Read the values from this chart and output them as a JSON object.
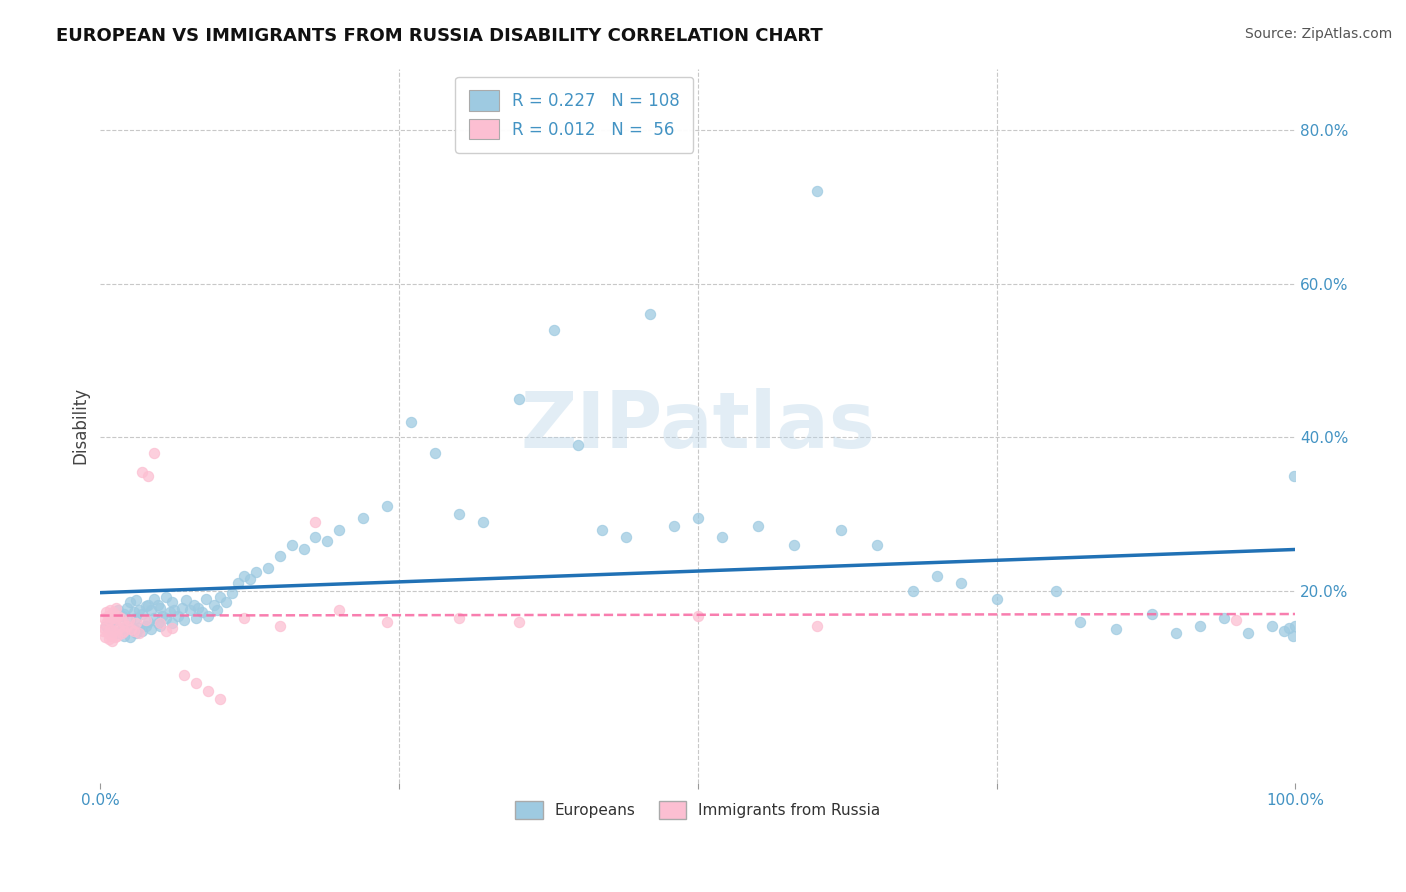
{
  "title": "EUROPEAN VS IMMIGRANTS FROM RUSSIA DISABILITY CORRELATION CHART",
  "source": "Source: ZipAtlas.com",
  "ylabel": "Disability",
  "xlim": [
    0.0,
    1.0
  ],
  "ylim": [
    -0.05,
    0.88
  ],
  "blue_R": 0.227,
  "blue_N": 108,
  "pink_R": 0.012,
  "pink_N": 56,
  "blue_color": "#9ecae1",
  "pink_color": "#fcbfd2",
  "blue_line_color": "#2171b5",
  "pink_line_color": "#f768a1",
  "axis_color": "#4393c3",
  "watermark": "ZIPatlas",
  "background_color": "#ffffff",
  "grid_color": "#c8c8c8",
  "blue_scatter_x": [
    0.005,
    0.008,
    0.01,
    0.012,
    0.015,
    0.015,
    0.018,
    0.018,
    0.02,
    0.02,
    0.022,
    0.022,
    0.025,
    0.025,
    0.025,
    0.028,
    0.028,
    0.03,
    0.03,
    0.03,
    0.032,
    0.032,
    0.035,
    0.035,
    0.038,
    0.038,
    0.04,
    0.04,
    0.042,
    0.042,
    0.045,
    0.045,
    0.048,
    0.048,
    0.05,
    0.05,
    0.052,
    0.055,
    0.055,
    0.058,
    0.06,
    0.06,
    0.062,
    0.065,
    0.068,
    0.07,
    0.072,
    0.075,
    0.078,
    0.08,
    0.082,
    0.085,
    0.088,
    0.09,
    0.095,
    0.098,
    0.1,
    0.105,
    0.11,
    0.115,
    0.12,
    0.125,
    0.13,
    0.14,
    0.15,
    0.16,
    0.17,
    0.18,
    0.19,
    0.2,
    0.22,
    0.24,
    0.26,
    0.28,
    0.3,
    0.32,
    0.35,
    0.38,
    0.4,
    0.42,
    0.44,
    0.46,
    0.48,
    0.5,
    0.52,
    0.55,
    0.58,
    0.6,
    0.62,
    0.65,
    0.68,
    0.7,
    0.72,
    0.75,
    0.8,
    0.82,
    0.85,
    0.88,
    0.9,
    0.92,
    0.94,
    0.96,
    0.98,
    0.99,
    0.995,
    0.998,
    0.999,
    1.0
  ],
  "blue_scatter_y": [
    0.155,
    0.16,
    0.148,
    0.162,
    0.145,
    0.175,
    0.15,
    0.168,
    0.142,
    0.17,
    0.155,
    0.178,
    0.14,
    0.162,
    0.185,
    0.15,
    0.172,
    0.145,
    0.165,
    0.188,
    0.152,
    0.175,
    0.148,
    0.17,
    0.155,
    0.18,
    0.16,
    0.182,
    0.15,
    0.175,
    0.165,
    0.19,
    0.158,
    0.182,
    0.155,
    0.178,
    0.168,
    0.165,
    0.192,
    0.172,
    0.158,
    0.185,
    0.175,
    0.168,
    0.178,
    0.162,
    0.188,
    0.175,
    0.182,
    0.165,
    0.178,
    0.172,
    0.19,
    0.168,
    0.182,
    0.175,
    0.192,
    0.185,
    0.198,
    0.21,
    0.22,
    0.215,
    0.225,
    0.23,
    0.245,
    0.26,
    0.255,
    0.27,
    0.265,
    0.28,
    0.295,
    0.31,
    0.42,
    0.38,
    0.3,
    0.29,
    0.45,
    0.54,
    0.39,
    0.28,
    0.27,
    0.56,
    0.285,
    0.295,
    0.27,
    0.285,
    0.26,
    0.72,
    0.28,
    0.26,
    0.2,
    0.22,
    0.21,
    0.19,
    0.2,
    0.16,
    0.15,
    0.17,
    0.145,
    0.155,
    0.165,
    0.145,
    0.155,
    0.148,
    0.152,
    0.142,
    0.35,
    0.155
  ],
  "pink_scatter_x": [
    0.002,
    0.003,
    0.003,
    0.004,
    0.005,
    0.005,
    0.006,
    0.006,
    0.007,
    0.007,
    0.008,
    0.008,
    0.009,
    0.009,
    0.01,
    0.01,
    0.011,
    0.011,
    0.012,
    0.012,
    0.013,
    0.013,
    0.014,
    0.015,
    0.016,
    0.017,
    0.018,
    0.019,
    0.02,
    0.022,
    0.024,
    0.026,
    0.028,
    0.03,
    0.032,
    0.035,
    0.038,
    0.04,
    0.045,
    0.05,
    0.055,
    0.06,
    0.07,
    0.08,
    0.09,
    0.1,
    0.12,
    0.15,
    0.18,
    0.2,
    0.24,
    0.3,
    0.35,
    0.5,
    0.6,
    0.95
  ],
  "pink_scatter_y": [
    0.148,
    0.152,
    0.165,
    0.14,
    0.158,
    0.172,
    0.145,
    0.168,
    0.138,
    0.162,
    0.15,
    0.175,
    0.142,
    0.168,
    0.135,
    0.165,
    0.148,
    0.172,
    0.14,
    0.165,
    0.155,
    0.178,
    0.142,
    0.168,
    0.152,
    0.165,
    0.145,
    0.16,
    0.148,
    0.155,
    0.162,
    0.15,
    0.148,
    0.158,
    0.145,
    0.355,
    0.162,
    0.35,
    0.38,
    0.158,
    0.148,
    0.152,
    0.09,
    0.08,
    0.07,
    0.06,
    0.165,
    0.155,
    0.29,
    0.175,
    0.16,
    0.165,
    0.16,
    0.168,
    0.155,
    0.162
  ],
  "legend_labels": [
    "Europeans",
    "Immigrants from Russia"
  ]
}
